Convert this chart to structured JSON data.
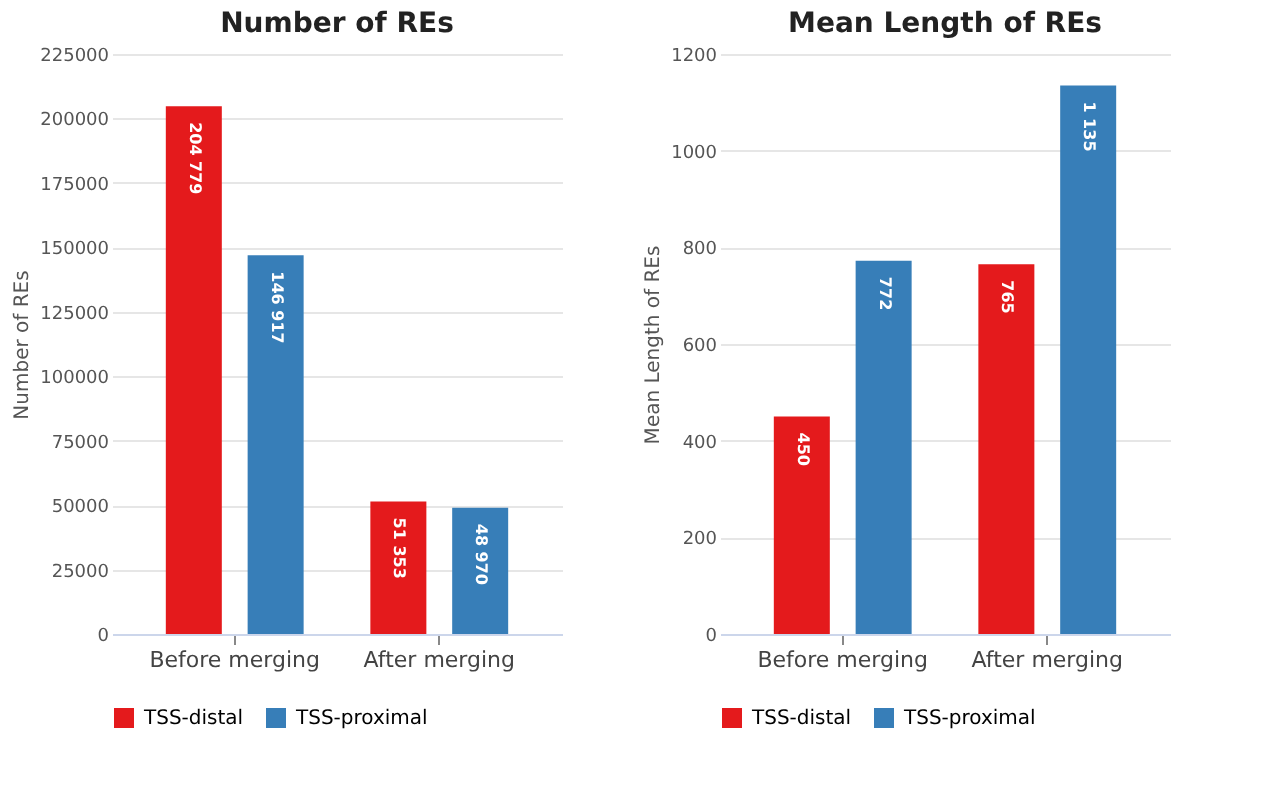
{
  "chart_data": [
    {
      "type": "bar",
      "title": "Number of REs",
      "ylabel": "Number of REs",
      "categories": [
        "Before merging",
        "After merging"
      ],
      "series": [
        {
          "name": "TSS-distal",
          "color": "#e41a1c",
          "values": [
            204779,
            51353
          ],
          "value_labels": [
            "204 779",
            "51 353"
          ]
        },
        {
          "name": "TSS-proximal",
          "color": "#377eb8",
          "values": [
            146917,
            48970
          ],
          "value_labels": [
            "146 917",
            "48 970"
          ]
        }
      ],
      "ylim": [
        0,
        225000
      ],
      "yticks": [
        0,
        25000,
        50000,
        75000,
        100000,
        125000,
        150000,
        175000,
        200000,
        225000
      ],
      "grid": "y",
      "legend": "bottom"
    },
    {
      "type": "bar",
      "title": "Mean Length of REs",
      "ylabel": "Mean Length of REs",
      "categories": [
        "Before merging",
        "After merging"
      ],
      "series": [
        {
          "name": "TSS-distal",
          "color": "#e41a1c",
          "values": [
            450,
            765
          ],
          "value_labels": [
            "450",
            "765"
          ]
        },
        {
          "name": "TSS-proximal",
          "color": "#377eb8",
          "values": [
            772,
            1135
          ],
          "value_labels": [
            "772",
            "1 135"
          ]
        }
      ],
      "ylim": [
        0,
        1200
      ],
      "yticks": [
        0,
        200,
        400,
        600,
        800,
        1000,
        1200
      ],
      "grid": "y",
      "legend": "bottom"
    }
  ]
}
